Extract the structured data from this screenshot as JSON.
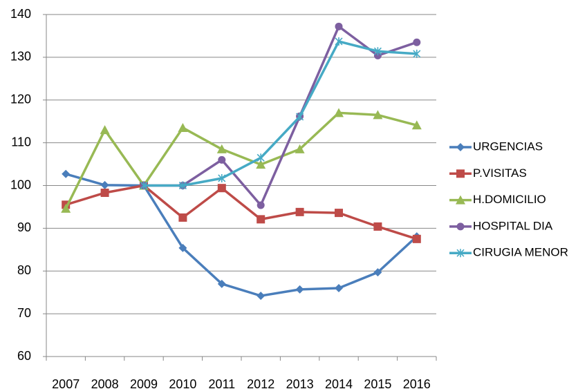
{
  "chart_data": {
    "type": "line",
    "categories": [
      "2007",
      "2008",
      "2009",
      "2010",
      "2011",
      "2012",
      "2013",
      "2014",
      "2015",
      "2016"
    ],
    "series": [
      {
        "name": "URGENCIAS",
        "color": "#4a7ebb",
        "marker": "diamond",
        "values": [
          102.7,
          100.1,
          100,
          85.4,
          77.0,
          74.2,
          75.7,
          76.0,
          79.7,
          88.1
        ]
      },
      {
        "name": "P.VISITAS",
        "color": "#be4b48",
        "marker": "square",
        "values": [
          95.5,
          98.3,
          100,
          92.5,
          99.4,
          92.1,
          93.8,
          93.6,
          90.4,
          87.5
        ]
      },
      {
        "name": "H.DOMICILIO",
        "color": "#98b954",
        "marker": "triangle",
        "values": [
          94.6,
          113,
          100,
          113.5,
          108.5,
          104.9,
          108.5,
          117,
          116.5,
          114.1
        ]
      },
      {
        "name": "HOSPITAL DIA",
        "color": "#7d5fa0",
        "marker": "circle",
        "values": [
          null,
          null,
          100,
          100,
          106,
          95.4,
          116.2,
          137.2,
          130.4,
          133.5
        ]
      },
      {
        "name": "CIRUGIA MENOR",
        "color": "#46aac5",
        "marker": "star",
        "values": [
          null,
          null,
          100,
          100,
          101.7,
          106.5,
          116.1,
          133.7,
          131.4,
          130.8
        ]
      }
    ],
    "ylim": [
      60,
      140
    ],
    "yticks": [
      60,
      70,
      80,
      90,
      100,
      110,
      120,
      130,
      140
    ],
    "grid": true,
    "legend": "right"
  }
}
